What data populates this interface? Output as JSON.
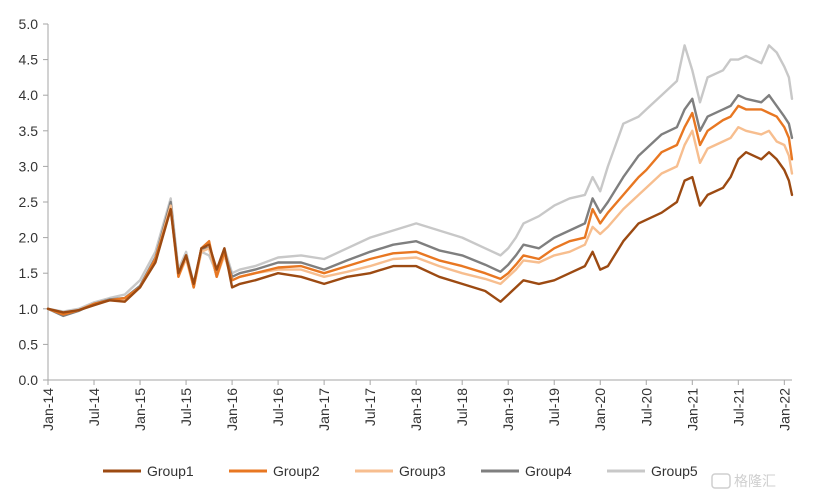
{
  "chart_data": {
    "type": "line",
    "title": "",
    "xlabel": "",
    "ylabel": "",
    "ylim": [
      0,
      5
    ],
    "y_ticks": [
      "0.0",
      "0.5",
      "1.0",
      "1.5",
      "2.0",
      "2.5",
      "3.0",
      "3.5",
      "4.0",
      "4.5",
      "5.0"
    ],
    "x_ticks": [
      {
        "label": "Jan-14",
        "t": 0
      },
      {
        "label": "Jul-14",
        "t": 6
      },
      {
        "label": "Jan-15",
        "t": 12
      },
      {
        "label": "Jul-15",
        "t": 18
      },
      {
        "label": "Jan-16",
        "t": 24
      },
      {
        "label": "Jul-16",
        "t": 30
      },
      {
        "label": "Jan-17",
        "t": 36
      },
      {
        "label": "Jul-17",
        "t": 42
      },
      {
        "label": "Jan-18",
        "t": 48
      },
      {
        "label": "Jul-18",
        "t": 54
      },
      {
        "label": "Jan-19",
        "t": 60
      },
      {
        "label": "Jul-19",
        "t": 66
      },
      {
        "label": "Jan-20",
        "t": 72
      },
      {
        "label": "Jul-20",
        "t": 78
      },
      {
        "label": "Jan-21",
        "t": 84
      },
      {
        "label": "Jul-21",
        "t": 90
      },
      {
        "label": "Jan-22",
        "t": 96
      }
    ],
    "x": [
      0,
      2,
      4,
      6,
      8,
      10,
      12,
      14,
      16,
      17,
      18,
      19,
      20,
      21,
      22,
      23,
      24,
      25,
      27,
      30,
      33,
      36,
      39,
      42,
      45,
      48,
      51,
      54,
      57,
      59,
      60,
      61,
      62,
      64,
      66,
      68,
      70,
      71,
      72,
      73,
      75,
      77,
      78,
      80,
      82,
      83,
      84,
      85,
      86,
      88,
      89,
      90,
      91,
      93,
      94,
      95,
      96,
      96.6,
      97
    ],
    "series": [
      {
        "name": "Group1",
        "color": "#9C4A12",
        "values": [
          1.0,
          0.95,
          0.98,
          1.05,
          1.12,
          1.1,
          1.3,
          1.65,
          2.4,
          1.5,
          1.75,
          1.35,
          1.85,
          1.9,
          1.55,
          1.85,
          1.3,
          1.35,
          1.4,
          1.5,
          1.45,
          1.35,
          1.45,
          1.5,
          1.6,
          1.6,
          1.45,
          1.35,
          1.25,
          1.1,
          1.2,
          1.3,
          1.4,
          1.35,
          1.4,
          1.5,
          1.6,
          1.8,
          1.55,
          1.6,
          1.95,
          2.2,
          2.25,
          2.35,
          2.5,
          2.8,
          2.85,
          2.45,
          2.6,
          2.7,
          2.85,
          3.1,
          3.2,
          3.1,
          3.2,
          3.1,
          2.95,
          2.8,
          2.6
        ]
      },
      {
        "name": "Group2",
        "color": "#E87722",
        "values": [
          1.0,
          0.92,
          0.98,
          1.07,
          1.12,
          1.15,
          1.3,
          1.7,
          2.4,
          1.45,
          1.75,
          1.3,
          1.85,
          1.95,
          1.45,
          1.8,
          1.4,
          1.45,
          1.5,
          1.58,
          1.6,
          1.5,
          1.6,
          1.7,
          1.78,
          1.8,
          1.68,
          1.6,
          1.5,
          1.42,
          1.5,
          1.62,
          1.75,
          1.7,
          1.85,
          1.95,
          2.0,
          2.4,
          2.2,
          2.35,
          2.6,
          2.85,
          2.95,
          3.2,
          3.3,
          3.55,
          3.75,
          3.3,
          3.5,
          3.65,
          3.7,
          3.85,
          3.8,
          3.8,
          3.75,
          3.7,
          3.55,
          3.4,
          3.1
        ]
      },
      {
        "name": "Group3",
        "color": "#F7BE8F",
        "values": [
          1.0,
          0.94,
          0.98,
          1.06,
          1.12,
          1.13,
          1.3,
          1.7,
          2.45,
          1.45,
          1.7,
          1.3,
          1.8,
          1.85,
          1.45,
          1.75,
          1.4,
          1.45,
          1.5,
          1.55,
          1.55,
          1.45,
          1.52,
          1.6,
          1.7,
          1.72,
          1.6,
          1.5,
          1.42,
          1.35,
          1.45,
          1.55,
          1.68,
          1.65,
          1.75,
          1.8,
          1.9,
          2.15,
          2.05,
          2.15,
          2.4,
          2.6,
          2.7,
          2.9,
          3.0,
          3.3,
          3.5,
          3.05,
          3.25,
          3.35,
          3.4,
          3.55,
          3.5,
          3.45,
          3.5,
          3.35,
          3.3,
          3.15,
          2.9
        ]
      },
      {
        "name": "Group4",
        "color": "#7F7F7F",
        "values": [
          1.0,
          0.9,
          0.97,
          1.07,
          1.13,
          1.15,
          1.32,
          1.72,
          2.5,
          1.48,
          1.75,
          1.3,
          1.85,
          1.85,
          1.45,
          1.8,
          1.45,
          1.5,
          1.55,
          1.65,
          1.65,
          1.55,
          1.68,
          1.8,
          1.9,
          1.95,
          1.82,
          1.75,
          1.62,
          1.52,
          1.62,
          1.75,
          1.9,
          1.85,
          2.0,
          2.1,
          2.2,
          2.55,
          2.35,
          2.5,
          2.85,
          3.15,
          3.25,
          3.45,
          3.55,
          3.8,
          3.95,
          3.5,
          3.7,
          3.8,
          3.85,
          4.0,
          3.95,
          3.9,
          4.0,
          3.85,
          3.7,
          3.6,
          3.4
        ]
      },
      {
        "name": "Group5",
        "color": "#C8C8C8",
        "values": [
          1.0,
          0.96,
          1.0,
          1.09,
          1.15,
          1.2,
          1.4,
          1.8,
          2.55,
          1.55,
          1.8,
          1.35,
          1.8,
          1.75,
          1.5,
          1.85,
          1.5,
          1.55,
          1.6,
          1.72,
          1.75,
          1.7,
          1.85,
          2.0,
          2.1,
          2.2,
          2.1,
          2.0,
          1.85,
          1.75,
          1.85,
          2.0,
          2.2,
          2.3,
          2.45,
          2.55,
          2.6,
          2.85,
          2.65,
          3.0,
          3.6,
          3.7,
          3.8,
          4.0,
          4.2,
          4.7,
          4.35,
          3.9,
          4.25,
          4.35,
          4.5,
          4.5,
          4.55,
          4.45,
          4.7,
          4.6,
          4.4,
          4.25,
          3.95
        ]
      }
    ]
  },
  "watermark": {
    "text": "格隆汇"
  }
}
